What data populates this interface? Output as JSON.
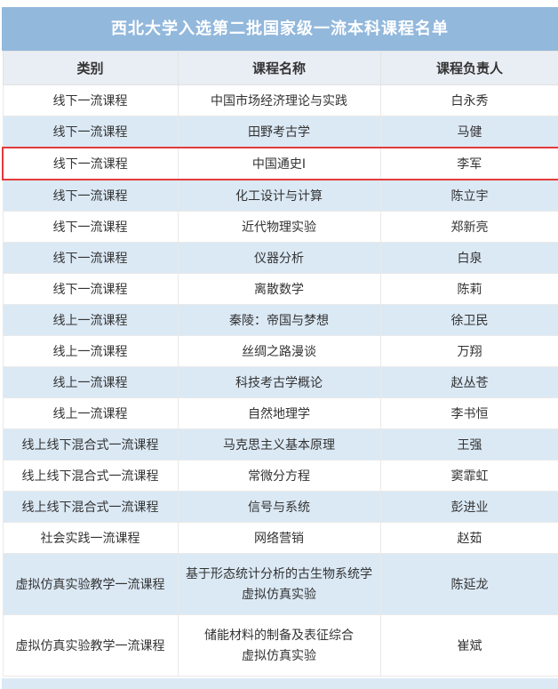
{
  "title": "西北大学入选第二批国家级一流本科课程名单",
  "colors": {
    "title_bar_bg": "#92b8dc",
    "title_text": "#ffffff",
    "header_row_bg": "#e9eef4",
    "alt_row_bg": "#dbe9f5",
    "highlight_border": "#e23a3a",
    "cell_text": "#333333"
  },
  "table": {
    "columns": [
      "类别",
      "课程名称",
      "课程负责人"
    ],
    "highlight_row_index": 2,
    "rows": [
      {
        "category": "线下一流课程",
        "course": "中国市场经济理论与实践",
        "leader": "白永秀"
      },
      {
        "category": "线下一流课程",
        "course": "田野考古学",
        "leader": "马健"
      },
      {
        "category": "线下一流课程",
        "course": "中国通史Ⅰ",
        "leader": "李军"
      },
      {
        "category": "线下一流课程",
        "course": "化工设计与计算",
        "leader": "陈立宇"
      },
      {
        "category": "线下一流课程",
        "course": "近代物理实验",
        "leader": "郑新亮"
      },
      {
        "category": "线下一流课程",
        "course": "仪器分析",
        "leader": "白泉"
      },
      {
        "category": "线下一流课程",
        "course": "离散数学",
        "leader": "陈莉"
      },
      {
        "category": "线上一流课程",
        "course": "秦陵：帝国与梦想",
        "leader": "徐卫民"
      },
      {
        "category": "线上一流课程",
        "course": "丝绸之路漫谈",
        "leader": "万翔"
      },
      {
        "category": "线上一流课程",
        "course": "科技考古学概论",
        "leader": "赵丛苍"
      },
      {
        "category": "线上一流课程",
        "course": "自然地理学",
        "leader": "李书恒"
      },
      {
        "category": "线上线下混合式一流课程",
        "course": "马克思主义基本原理",
        "leader": "王强"
      },
      {
        "category": "线上线下混合式一流课程",
        "course": "常微分方程",
        "leader": "窦霏虹"
      },
      {
        "category": "线上线下混合式一流课程",
        "course": "信号与系统",
        "leader": "彭进业"
      },
      {
        "category": "社会实践一流课程",
        "course": "网络营销",
        "leader": "赵茹"
      },
      {
        "category": "虚拟仿真实验教学一流课程",
        "course": "基于形态统计分析的古生物系统学\n虚拟仿真实验",
        "leader": "陈延龙"
      },
      {
        "category": "虚拟仿真实验教学一流课程",
        "course": "储能材料的制备及表征综合\n虚拟仿真实验",
        "leader": "崔斌"
      }
    ]
  }
}
